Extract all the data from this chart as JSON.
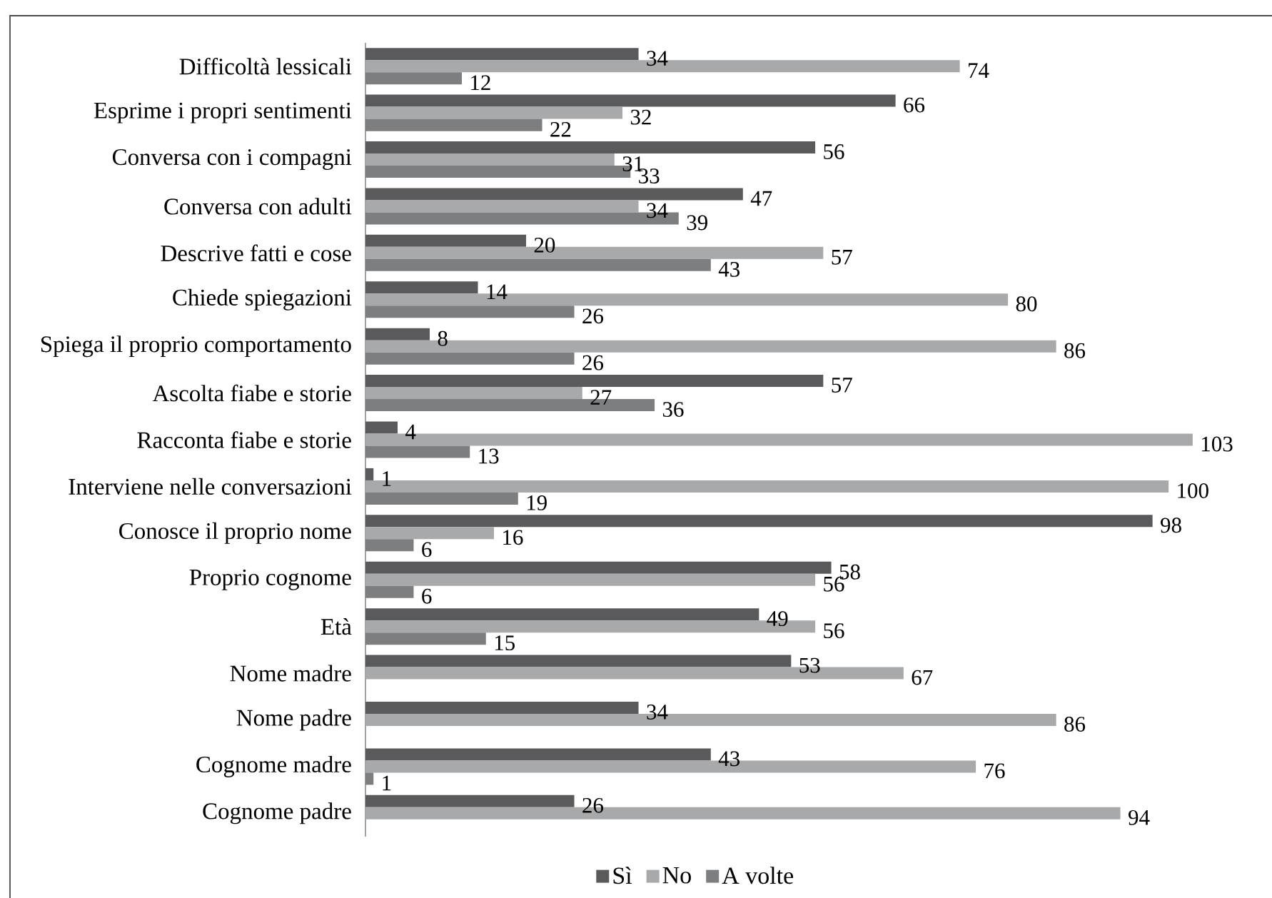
{
  "chart_data": {
    "type": "bar",
    "orientation": "horizontal",
    "categories": [
      "Difficoltà lessicali",
      "Esprime i propri sentimenti",
      "Conversa con i compagni",
      "Conversa con adulti",
      "Descrive fatti e cose",
      "Chiede spiegazioni",
      "Spiega il proprio comportamento",
      "Ascolta fiabe e storie",
      "Racconta fiabe e storie",
      "Interviene nelle conversazioni",
      "Conosce il proprio nome",
      "Proprio cognome",
      "Età",
      "Nome madre",
      "Nome padre",
      "Cognome madre",
      "Cognome padre"
    ],
    "series": [
      {
        "name": "Sì",
        "color": "#5a5a5c",
        "values": [
          34,
          66,
          56,
          47,
          20,
          14,
          8,
          57,
          4,
          1,
          98,
          58,
          49,
          53,
          34,
          43,
          26
        ]
      },
      {
        "name": "No",
        "color": "#a8a9ab",
        "values": [
          74,
          32,
          31,
          34,
          57,
          80,
          86,
          27,
          103,
          100,
          16,
          56,
          56,
          67,
          86,
          76,
          94
        ]
      },
      {
        "name": "A volte",
        "color": "#7d7e80",
        "values": [
          12,
          22,
          33,
          39,
          43,
          26,
          26,
          36,
          13,
          19,
          6,
          6,
          15,
          null,
          null,
          1,
          null
        ]
      }
    ],
    "data_labels": true,
    "legend": "bottom"
  }
}
